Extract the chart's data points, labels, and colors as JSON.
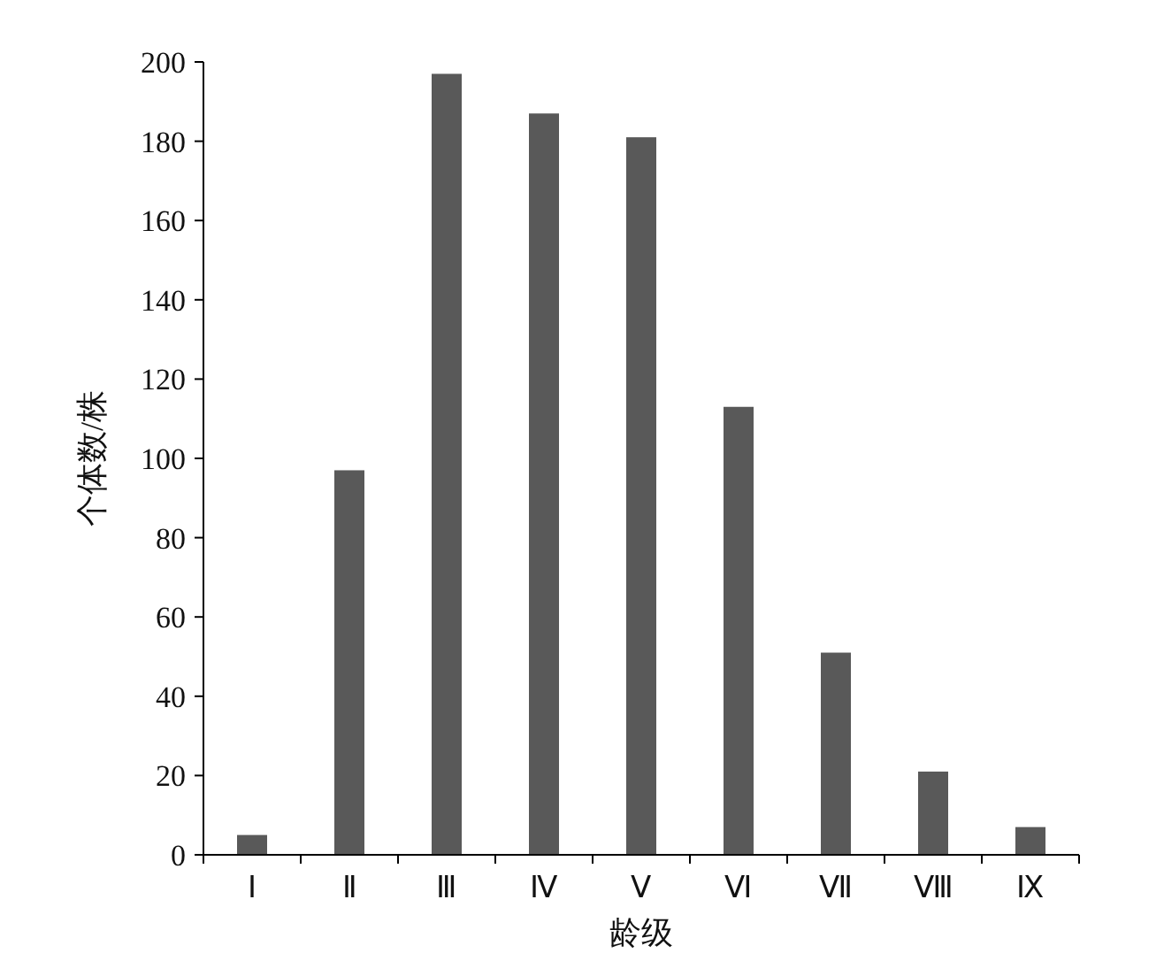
{
  "chart_data": {
    "type": "bar",
    "xlabel": "龄级",
    "ylabel": "个体数/株",
    "categories": [
      "Ⅰ",
      "Ⅱ",
      "Ⅲ",
      "Ⅳ",
      "Ⅴ",
      "Ⅵ",
      "Ⅶ",
      "Ⅷ",
      "Ⅸ"
    ],
    "values": [
      5,
      97,
      197,
      187,
      181,
      113,
      51,
      21,
      7
    ],
    "color": "#595959",
    "ylim": [
      0,
      200
    ],
    "yticks": [
      0,
      20,
      40,
      60,
      80,
      100,
      120,
      140,
      160,
      180,
      200
    ],
    "grid": false
  }
}
